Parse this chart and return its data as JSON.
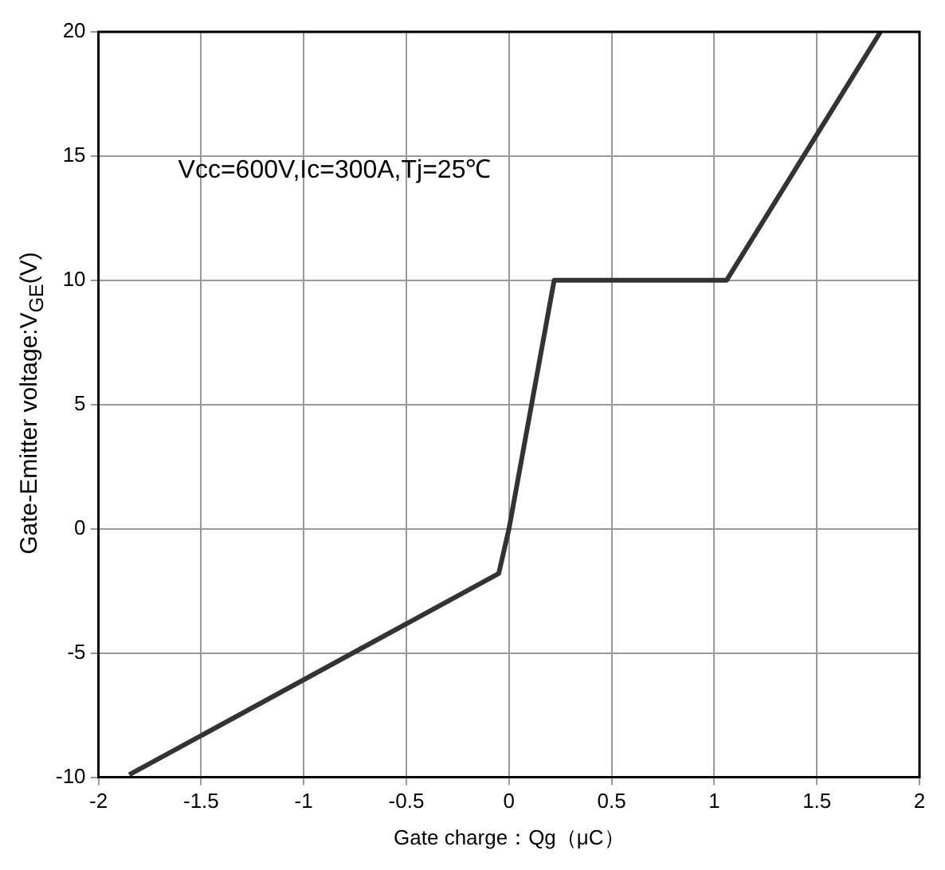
{
  "chart_data": {
    "type": "line",
    "xlabel": "Gate charge：Qg（μC）",
    "ylabel": "Gate-Emitter voltage:V$_{GE}$(V)",
    "annotations": [
      "Vcc=600V,Ic=300A,Tj=25℃"
    ],
    "x": [
      -1.85,
      -0.05,
      0,
      0.22,
      1.06,
      1.81
    ],
    "series": [
      {
        "color": "#333333",
        "values": [
          -9.9,
          -1.8,
          0,
          10,
          10,
          20
        ]
      }
    ],
    "xlim": [
      -2,
      2
    ],
    "ylim": [
      -10,
      20
    ],
    "xticks": [
      -2,
      -1.5,
      -1,
      -0.5,
      0,
      0.5,
      1,
      1.5,
      2
    ],
    "yticks": [
      -10,
      -5,
      0,
      5,
      10,
      15,
      20
    ],
    "grid": true,
    "legend": false,
    "marker": "none",
    "line_style": "solid"
  }
}
